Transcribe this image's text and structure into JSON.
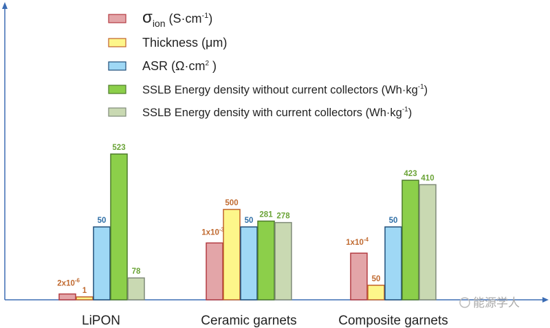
{
  "chart_data": {
    "type": "bar",
    "title": "",
    "xlabel": "",
    "ylabel": "",
    "grid": false,
    "legend_placement": "top-center",
    "categories": [
      "LiPON",
      "Ceramic garnets",
      "Composite garnets"
    ],
    "series": [
      {
        "name": "σ_ion (S·cm⁻¹)",
        "legend_main": "σ",
        "legend_sub": "ion",
        "legend_rest": " (S·cm",
        "legend_sup": "-1",
        "legend_end": ")",
        "fill": "#e3a5a8",
        "stroke": "#b33a40",
        "label_color": "#c06a30",
        "values": [
          "2x10^-6",
          "1x10^-3",
          "1x10^-4"
        ],
        "labels": [
          {
            "base": "2x10",
            "exp": "-6"
          },
          {
            "base": "1x10",
            "exp": "-3"
          },
          {
            "base": "1x10",
            "exp": "-4"
          }
        ],
        "relative_heights": [
          0.04,
          0.39,
          0.32
        ]
      },
      {
        "name": "Thickness (μm)",
        "legend_main": "Thickness (μm)",
        "fill": "#fdf68a",
        "stroke": "#c0602a",
        "label_color": "#c06a30",
        "values": [
          1,
          500,
          50
        ],
        "labels": [
          {
            "base": "1"
          },
          {
            "base": "500"
          },
          {
            "base": "50"
          }
        ],
        "relative_heights": [
          0.02,
          0.62,
          0.1
        ]
      },
      {
        "name": "ASR (Ω·cm²)",
        "legend_main": "ASR (Ω·cm",
        "legend_sup": "2",
        "legend_end": " )",
        "fill": "#9fd8f5",
        "stroke": "#1f4e79",
        "label_color": "#2e6ea6",
        "values": [
          50,
          50,
          50
        ],
        "labels": [
          {
            "base": "50"
          },
          {
            "base": "50"
          },
          {
            "base": "50"
          }
        ],
        "relative_heights": [
          0.5,
          0.5,
          0.5
        ]
      },
      {
        "name": "SSLB Energy density without current collectors (Wh·kg⁻¹)",
        "legend_main": "SSLB Energy density without current collectors (Wh·kg",
        "legend_sup": "-1",
        "legend_end": ")",
        "fill": "#8ccf4a",
        "stroke": "#4d7a2a",
        "label_color": "#6aa336",
        "values": [
          523,
          281,
          423
        ],
        "labels": [
          {
            "base": "523"
          },
          {
            "base": "281"
          },
          {
            "base": "423"
          }
        ],
        "relative_heights": [
          1.0,
          0.54,
          0.82
        ]
      },
      {
        "name": "SSLB Energy density with current collectors (Wh·kg⁻¹)",
        "legend_main": "SSLB Energy density with current collectors (Wh·kg",
        "legend_sup": "-1",
        "legend_end": ")",
        "fill": "#c9d9b2",
        "stroke": "#7f8a78",
        "label_color": "#6aa336",
        "values": [
          78,
          278,
          410
        ],
        "labels": [
          {
            "base": "78"
          },
          {
            "base": "278"
          },
          {
            "base": "410"
          }
        ],
        "relative_heights": [
          0.15,
          0.53,
          0.79
        ]
      }
    ],
    "axis_color": "#3b6cb4"
  },
  "watermark": "能源学人"
}
